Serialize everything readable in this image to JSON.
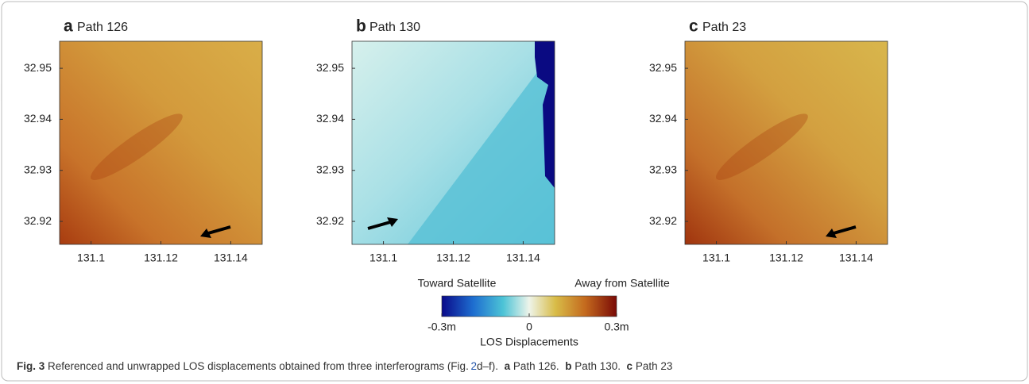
{
  "panels": [
    {
      "letter": "a",
      "title": "Path 126",
      "xlim": [
        131.091,
        131.149
      ],
      "ylim": [
        32.9155,
        32.9553
      ],
      "xticks": [
        131.1,
        131.12,
        131.14
      ],
      "yticks": [
        32.92,
        32.93,
        32.94,
        32.95
      ]
    },
    {
      "letter": "b",
      "title": "Path 130",
      "xlim": [
        131.091,
        131.149
      ],
      "ylim": [
        32.9155,
        32.9553
      ],
      "xticks": [
        131.1,
        131.12,
        131.14
      ],
      "yticks": [
        32.92,
        32.93,
        32.94,
        32.95
      ]
    },
    {
      "letter": "c",
      "title": "Path 23",
      "xlim": [
        131.091,
        131.149
      ],
      "ylim": [
        32.9155,
        32.9553
      ],
      "xticks": [
        131.1,
        131.12,
        131.14
      ],
      "yticks": [
        32.92,
        32.93,
        32.94,
        32.95
      ]
    }
  ],
  "colorbar": {
    "left_label": "Toward Satellite",
    "right_label": "Away from Satellite",
    "title": "LOS Displacements",
    "lim": [
      -0.3,
      0.3
    ],
    "ticks": [
      {
        "value": -0.3,
        "label": "-0.3m"
      },
      0,
      {
        "value": 0.3,
        "label": "0.3m"
      }
    ]
  },
  "caption": {
    "label": "Fig. 3",
    "text": "Referenced and unwrapped LOS displacements obtained from three interferograms (Fig.",
    "link": "2",
    "text_after": "d–f).",
    "parts": [
      {
        "letter": "a",
        "text": "Path 126."
      },
      {
        "letter": "b",
        "text": "Path 130."
      },
      {
        "letter": "c",
        "text": "Path 23"
      }
    ]
  }
}
